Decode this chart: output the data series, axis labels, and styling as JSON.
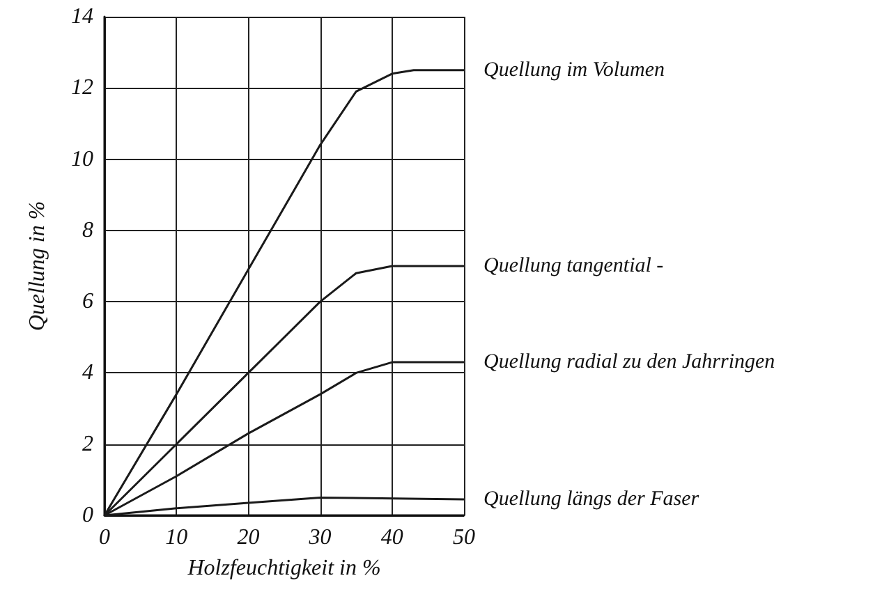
{
  "chart_data": {
    "type": "line",
    "xlabel": "Holzfeuchtigkeit in %",
    "ylabel": "Quellung in %",
    "xlim": [
      0,
      50
    ],
    "xticks": [
      0,
      10,
      20,
      30,
      40,
      50
    ],
    "ylim": [
      0,
      14
    ],
    "yticks": [
      0,
      2,
      4,
      6,
      8,
      10,
      12,
      14
    ],
    "grid": true,
    "legend": false,
    "marker": "none",
    "line_style": "solid",
    "series": [
      {
        "name": "Quellung im Volumen",
        "color": "#1a1a1a",
        "x": [
          0,
          10,
          20,
          30,
          35,
          40,
          43,
          50
        ],
        "values": [
          0,
          3.4,
          6.9,
          10.4,
          11.9,
          12.4,
          12.5,
          12.5
        ]
      },
      {
        "name": "Quellung tangential -",
        "color": "#1a1a1a",
        "x": [
          0,
          10,
          20,
          30,
          35,
          40,
          50
        ],
        "values": [
          0,
          2,
          4,
          6,
          6.8,
          7,
          7
        ]
      },
      {
        "name": "Quellung radial zu den Jahrringen",
        "color": "#1a1a1a",
        "x": [
          0,
          10,
          20,
          30,
          35,
          40,
          50
        ],
        "values": [
          0,
          1.1,
          2.3,
          3.4,
          4,
          4.3,
          4.3
        ]
      },
      {
        "name": "Quellung längs der Faser",
        "color": "#1a1a1a",
        "x": [
          0,
          10,
          20,
          30,
          50
        ],
        "values": [
          0,
          0.2,
          0.35,
          0.5,
          0.45
        ]
      }
    ]
  }
}
